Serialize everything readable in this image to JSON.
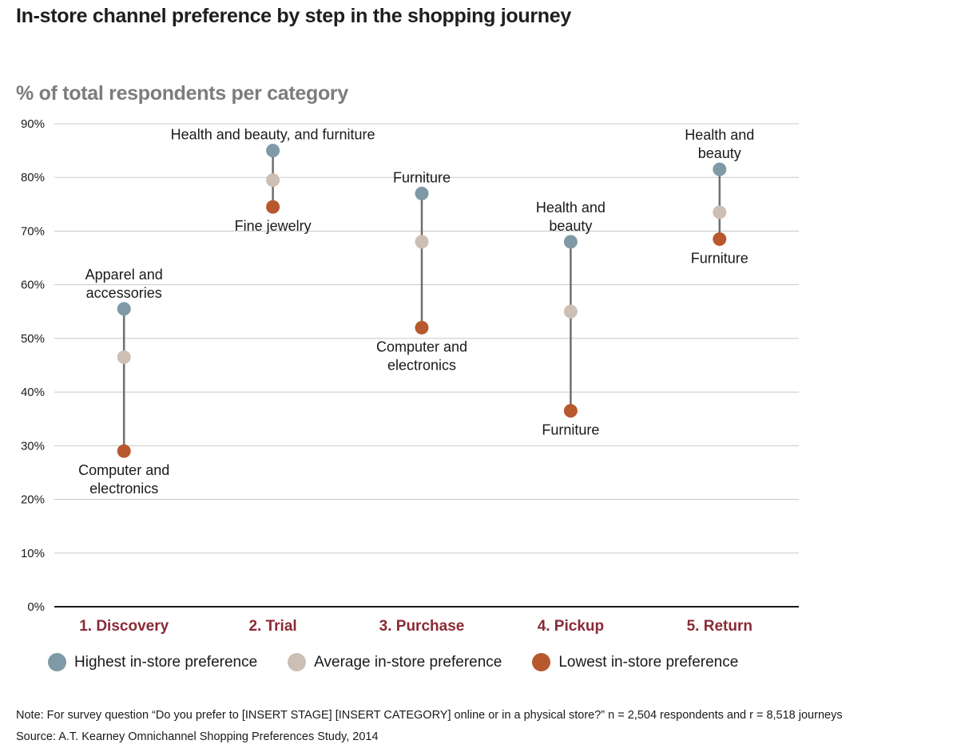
{
  "title": "In-store channel preference by step in the shopping journey",
  "subtitle": "% of total respondents per category",
  "colors": {
    "highest": "#7f9aa6",
    "average": "#cdbfb4",
    "lowest": "#b8582f",
    "category_label": "#8a2a35",
    "connector": "#6f6f6f",
    "grid": "#c8c8c8"
  },
  "chart_data": {
    "type": "dot-range",
    "y_tick_labels": [
      "0%",
      "10%",
      "20%",
      "30%",
      "40%",
      "50%",
      "60%",
      "70%",
      "80%",
      "90%"
    ],
    "ylim": [
      0,
      90
    ],
    "grid": true,
    "categories": [
      "1. Discovery",
      "2. Trial",
      "3. Purchase",
      "4. Pickup",
      "5. Return"
    ],
    "series": [
      {
        "name": "Highest in-store preference",
        "color": "#7f9aa6",
        "values": [
          55.5,
          85,
          77,
          68,
          81.5
        ]
      },
      {
        "name": "Average in-store preference",
        "color": "#cdbfb4",
        "values": [
          46.5,
          79.5,
          68,
          55,
          73.5
        ]
      },
      {
        "name": "Lowest in-store preference",
        "color": "#b8582f",
        "values": [
          29,
          74.5,
          52,
          36.5,
          68.5
        ]
      }
    ],
    "annotations": [
      {
        "category": 0,
        "value": 55.5,
        "position": "above",
        "lines": [
          "Apparel and",
          "accessories"
        ]
      },
      {
        "category": 0,
        "value": 29,
        "position": "below",
        "lines": [
          "Computer and",
          "electronics"
        ]
      },
      {
        "category": 1,
        "value": 85,
        "position": "above",
        "lines": [
          "Health and beauty, and furniture"
        ]
      },
      {
        "category": 1,
        "value": 74.5,
        "position": "below",
        "lines": [
          "Fine jewelry"
        ]
      },
      {
        "category": 2,
        "value": 77,
        "position": "above",
        "lines": [
          "Furniture"
        ]
      },
      {
        "category": 2,
        "value": 52,
        "position": "below",
        "lines": [
          "Computer and",
          "electronics"
        ]
      },
      {
        "category": 3,
        "value": 68,
        "position": "above",
        "lines": [
          "Health and",
          "beauty"
        ]
      },
      {
        "category": 3,
        "value": 36.5,
        "position": "below",
        "lines": [
          "Furniture"
        ]
      },
      {
        "category": 4,
        "value": 81.5,
        "position": "above",
        "lines": [
          "Health and",
          "beauty"
        ]
      },
      {
        "category": 4,
        "value": 68.5,
        "position": "below",
        "lines": [
          "Furniture"
        ]
      }
    ],
    "legend_position": "bottom"
  },
  "legend": [
    {
      "label": "Highest in-store preference",
      "color": "#7f9aa6"
    },
    {
      "label": "Average in-store preference",
      "color": "#cdbfb4"
    },
    {
      "label": "Lowest in-store preference",
      "color": "#b8582f"
    }
  ],
  "note": "Note: For survey question “Do you prefer to [INSERT STAGE] [INSERT CATEGORY] online or in a physical store?” n = 2,504 respondents and r = 8,518 journeys",
  "source": "Source: A.T. Kearney Omnichannel Shopping Preferences Study, 2014"
}
